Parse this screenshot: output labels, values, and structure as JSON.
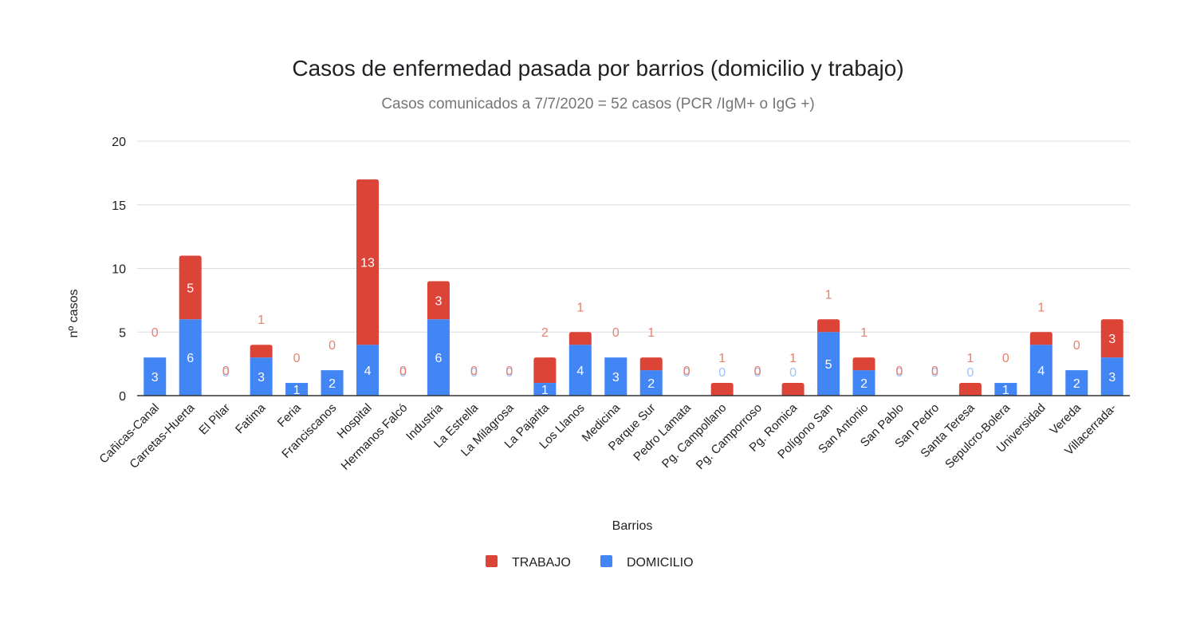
{
  "chart_data": {
    "type": "bar",
    "stacked": true,
    "title": "Casos de enfermedad pasada por barrios (domicilio y trabajo)",
    "subtitle": "Casos comunicados a 7/7/2020 = 52 casos (PCR /IgM+ o IgG +)",
    "xlabel": "Barrios",
    "ylabel": "nº casos",
    "ylim": [
      0,
      20
    ],
    "yticks": [
      "0",
      "5",
      "10",
      "15",
      "20"
    ],
    "grid": true,
    "legend_position": "bottom",
    "categories": [
      "Cañicas-Canal",
      "Carretas-Huerta",
      "El Pilar",
      "Fatima",
      "Feria",
      "Franciscanos",
      "Hospital",
      "Hermanos Falcó",
      "Industria",
      "La Estrella",
      "La Milagrosa",
      "La Pajarita",
      "Los Llanos",
      "Medicina",
      "Parque Sur",
      "Pedro Lamata",
      "Pg. Campollano",
      "Pg. Camporroso",
      "Pg. Romica",
      "Polígono San",
      "San Antonio",
      "San Pablo",
      "San Pedro",
      "Santa Teresa",
      "Sepulcro-Bolera",
      "Universidad",
      "Vereda",
      "Villacerrada-"
    ],
    "series": [
      {
        "name": "DOMICILIO",
        "color": "#4285f4",
        "label_color": "#9fc2f9",
        "values": [
          3,
          6,
          0,
          3,
          1,
          2,
          4,
          0,
          6,
          0,
          0,
          1,
          4,
          3,
          2,
          0,
          0,
          0,
          0,
          5,
          2,
          0,
          0,
          0,
          1,
          4,
          2,
          3
        ],
        "labels": [
          "3",
          "6",
          "0",
          "3",
          "1",
          "2",
          "4",
          "0",
          "6",
          "0",
          "0",
          "1",
          "4",
          "3",
          "2",
          "0",
          "0",
          "0",
          "0",
          "5",
          "2",
          "0",
          "0",
          "0",
          "1",
          "4",
          "2",
          "3"
        ]
      },
      {
        "name": "TRABAJO",
        "color": "#db4437",
        "label_color": "#e8816f",
        "values": [
          0,
          5,
          0,
          1,
          0,
          0,
          13,
          0,
          3,
          0,
          0,
          2,
          1,
          0,
          1,
          0,
          1,
          0,
          1,
          1,
          1,
          0,
          0,
          1,
          0,
          1,
          0,
          3
        ],
        "labels": [
          "0",
          "5",
          "0",
          "1",
          "0",
          "0",
          "13",
          "0",
          "3",
          "0",
          "0",
          "2",
          "1",
          "0",
          "1",
          "0",
          "1",
          "0",
          "1",
          "1",
          "1",
          "0",
          "0",
          "1",
          "0",
          "1",
          "0",
          "3"
        ]
      }
    ],
    "legend": [
      {
        "name": "TRABAJO",
        "color": "#db4437"
      },
      {
        "name": "DOMICILIO",
        "color": "#4285f4"
      }
    ]
  }
}
